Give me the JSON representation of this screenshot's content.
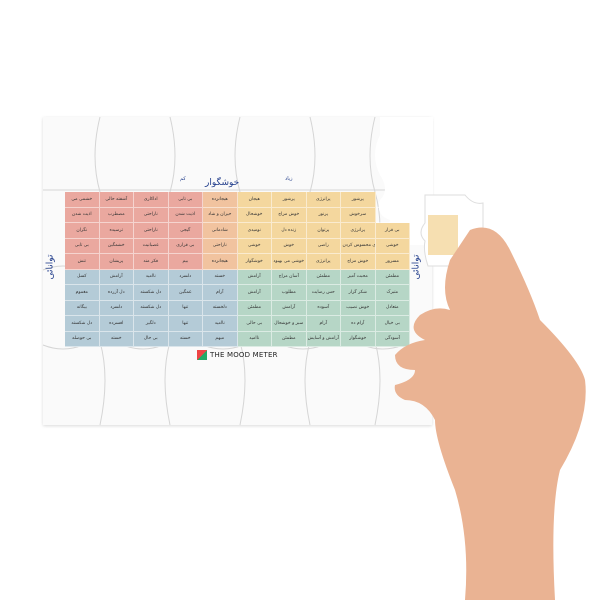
{
  "board": {
    "top_label": "خوشگوار",
    "low_label": "کم",
    "high_label": "زیاد",
    "left_label": "توانائی",
    "right_label": "توانائی",
    "logo_text": "THE MOOD METER",
    "colors": {
      "red": "#eaa89f",
      "orange": "#f1c39f",
      "yellow": "#f4d79e",
      "blue": "#b4cbd7",
      "green": "#b6d6c6"
    },
    "rows": [
      [
        "خشمی می",
        "آشفته حالی",
        "اداکاری",
        "بی تابی",
        "هیجانزده",
        "هیجان",
        "پرشور",
        "پرانرژی",
        "پرشور",
        ""
      ],
      [
        "اذیت شدن",
        "مضطرب",
        "ناراحتی",
        "اذیت شدن",
        "حیران و شاد",
        "خوشحال",
        "خوش مزاج",
        "پرنور",
        "سرخوش",
        ""
      ],
      [
        "نگران",
        "ترسیده",
        "ناراحتی",
        "گیجی",
        "شادمانی",
        "نومیدی",
        "زنده دل",
        "پرتوان",
        "پرانرژی",
        "بی قرار"
      ],
      [
        "بی تابی",
        "خشمگین",
        "عصبانیت",
        "بی قراری",
        "ناراحتی",
        "خوشی",
        "خوش",
        "راضی",
        "قوی محسوس کردن والا",
        "خوشی"
      ],
      [
        "تنش",
        "پریشان",
        "فکر مند",
        "بیم",
        "هیجانزده",
        "خوشگوار",
        "خوشی می بهبود",
        "پرانرژی",
        "خوش مزاج",
        "مسرور"
      ],
      [
        "کسل",
        "آرامش",
        "ناامید",
        "دلسرد",
        "خسته",
        "آرامش",
        "آسان مزاج",
        "مطمئن",
        "محبت آمیز",
        "مطمئن"
      ],
      [
        "مغموم",
        "دل آزرده",
        "دل شکسته",
        "غمگین",
        "آرام",
        "آرامش",
        "مطلوب",
        "حس رضایت",
        "شکر گزار",
        "متبرک"
      ],
      [
        "بیگانه",
        "دلسرد",
        "دل شکسته",
        "تنها",
        "دلخسته",
        "مطمئن",
        "آرامش",
        "آسوده",
        "خوش نصیب",
        "متعادل"
      ],
      [
        "دل شکسته",
        "افسرده",
        "دلگیر",
        "تنها",
        "ناامید",
        "بی حالی",
        "سبز و خوشحال",
        "آرام",
        "آرام ده",
        "بی خیال"
      ],
      [
        "بی حوصله",
        "خسته",
        "بی حال",
        "خسته",
        "مبهم",
        "ناامید",
        "مطمئن",
        "آرامش و آسایش",
        "خوشگوار",
        "آسودگی"
      ]
    ]
  }
}
